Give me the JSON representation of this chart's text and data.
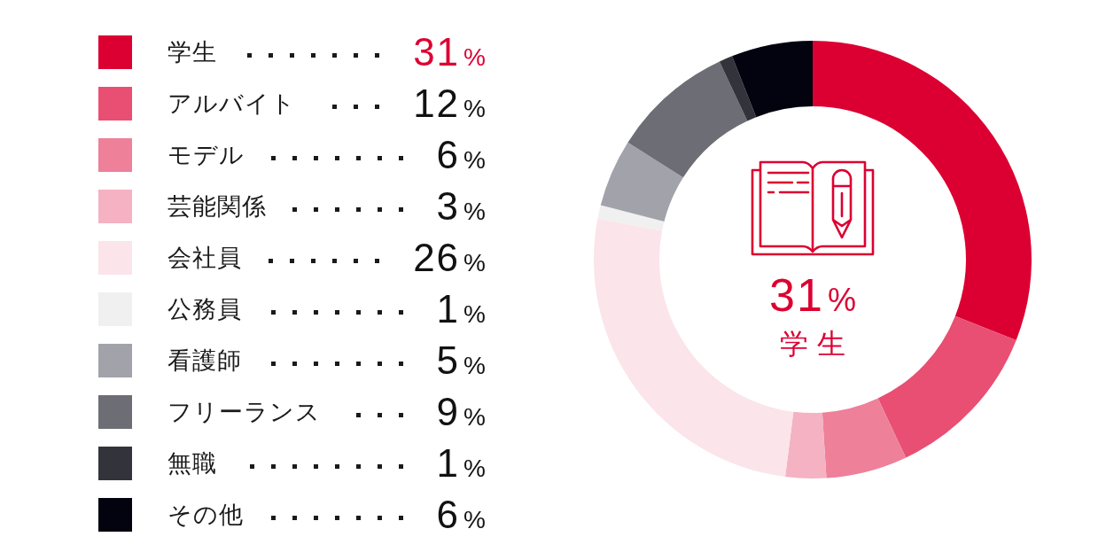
{
  "chart_data": {
    "type": "donut",
    "categories": [
      "学生",
      "アルバイト",
      "モデル",
      "芸能関係",
      "会社員",
      "公務員",
      "看護師",
      "フリーランス",
      "無職",
      "その他"
    ],
    "values": [
      31,
      12,
      6,
      3,
      26,
      1,
      5,
      9,
      1,
      6
    ],
    "colors": [
      "#dc0032",
      "#e84f72",
      "#ee8099",
      "#f4b2c2",
      "#fbe4ea",
      "#f0f0f0",
      "#a2a2aa",
      "#6d6d75",
      "#33333b",
      "#03030f"
    ],
    "value_labels": [
      "31%",
      "12%",
      "6%",
      "3%",
      "26%",
      "1%",
      "5%",
      "9%",
      "1%",
      "6%"
    ],
    "legend": "left",
    "annotations": [
      "31%",
      "学 生"
    ]
  }
}
